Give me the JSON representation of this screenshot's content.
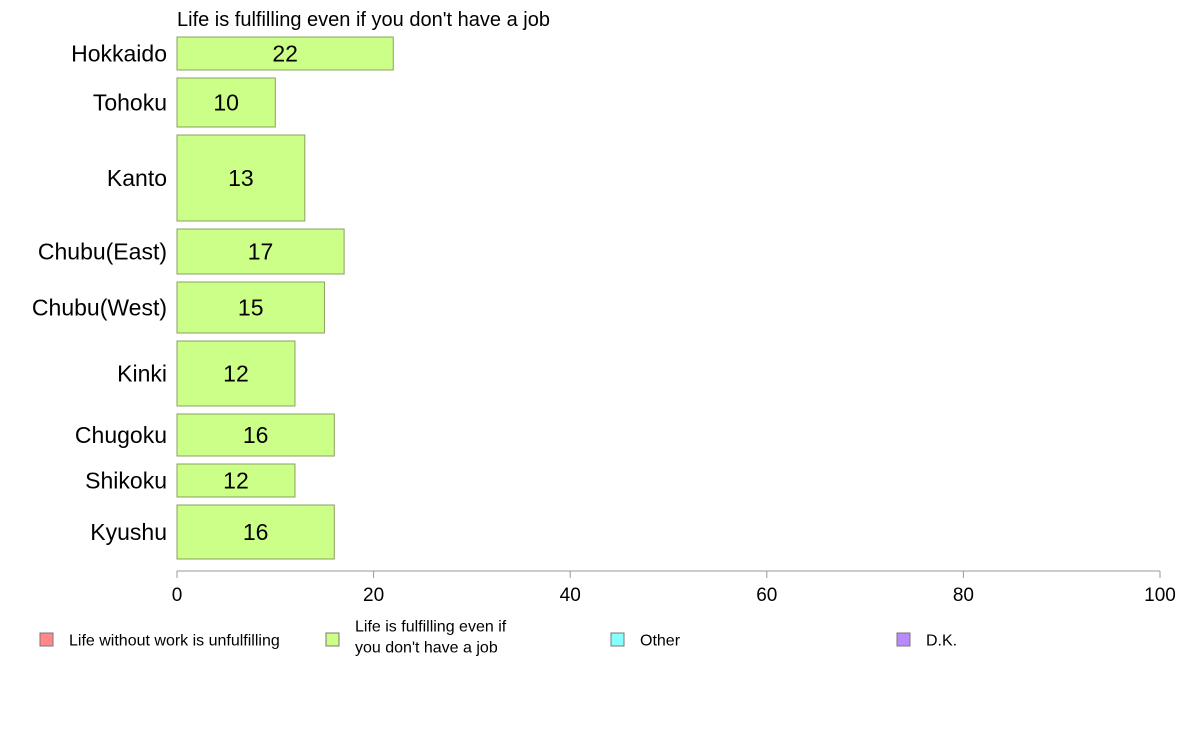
{
  "chart_data": {
    "type": "bar",
    "orientation": "horizontal",
    "title": "Life is fulfilling even if you don't have a job",
    "categories": [
      "Hokkaido",
      "Tohoku",
      "Kanto",
      "Chubu(East)",
      "Chubu(West)",
      "Kinki",
      "Chugoku",
      "Shikoku",
      "Kyushu"
    ],
    "series": [
      {
        "name": "Life is fulfilling even if you don't have a job",
        "color": "#ccff88",
        "values": [
          22,
          10,
          13,
          17,
          15,
          12,
          16,
          12,
          16
        ],
        "value_labels": [
          "22",
          "10",
          "13",
          "17",
          "15",
          "12",
          "16",
          "12",
          "16"
        ]
      }
    ],
    "xlim": [
      0,
      100
    ],
    "xticks": [
      0,
      20,
      40,
      60,
      80,
      100
    ],
    "xtick_labels": [
      "0",
      "20",
      "40",
      "60",
      "80",
      "100"
    ],
    "grid": false,
    "legend_position": "bottom",
    "legend": [
      {
        "label": "Life without work is unfulfilling",
        "color": "#ff8888"
      },
      {
        "label_lines": [
          "Life is fulfilling even if",
          "you don't have a job"
        ],
        "color": "#ccff88"
      },
      {
        "label": "Other",
        "color": "#88ffff"
      },
      {
        "label": "D.K.",
        "color": "#bb88ff"
      }
    ]
  }
}
